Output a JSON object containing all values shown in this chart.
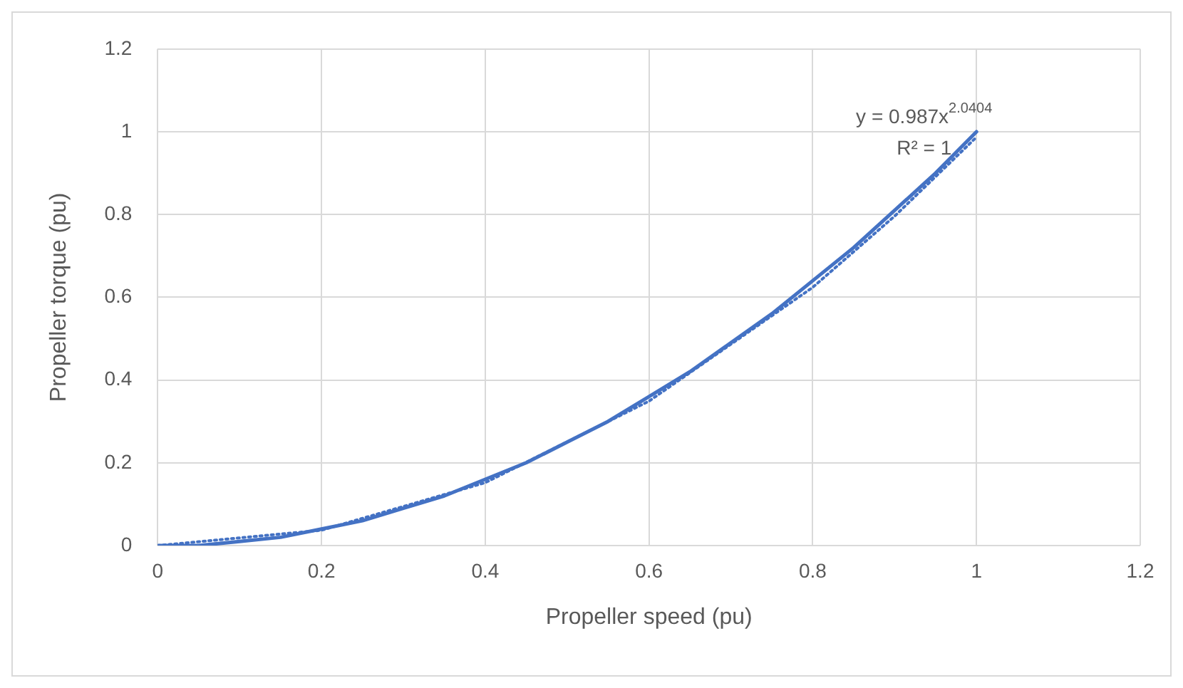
{
  "chart_data": {
    "type": "line",
    "xlabel": "Propeller speed (pu)",
    "ylabel": "Propeller torque (pu)",
    "x": [
      0,
      0.05,
      0.1,
      0.15,
      0.2,
      0.25,
      0.3,
      0.35,
      0.4,
      0.45,
      0.5,
      0.55,
      0.6,
      0.65,
      0.7,
      0.75,
      0.8,
      0.85,
      0.9,
      0.95,
      1
    ],
    "series": [
      {
        "color": "#4472c4",
        "values": [
          0,
          0,
          0.01,
          0.02,
          0.04,
          0.06,
          0.09,
          0.12,
          0.16,
          0.2,
          0.25,
          0.3,
          0.36,
          0.42,
          0.49,
          0.56,
          0.64,
          0.72,
          0.81,
          0.9,
          1
        ]
      },
      {
        "type": "line",
        "line_style": "dotted",
        "color": "#4472c4",
        "x": [
          0,
          0.2,
          0.4,
          0.6,
          0.8,
          0.9,
          1
        ],
        "values": [
          0,
          0.037,
          0.152,
          0.349,
          0.624,
          0.796,
          0.987
        ]
      }
    ],
    "xlim": [
      0,
      1.2
    ],
    "xticks": [
      0,
      0.2,
      0.4,
      0.6,
      0.8,
      1,
      1.2
    ],
    "ylim": [
      0,
      1.2
    ],
    "yticks": [
      0,
      0.2,
      0.4,
      0.6,
      0.8,
      1,
      1.2
    ],
    "grid": true,
    "legend": false,
    "marker": "none",
    "line_style": "solid",
    "annotations": [
      "y = 0.987x$^{2.0404}$",
      "R² = 1"
    ]
  }
}
